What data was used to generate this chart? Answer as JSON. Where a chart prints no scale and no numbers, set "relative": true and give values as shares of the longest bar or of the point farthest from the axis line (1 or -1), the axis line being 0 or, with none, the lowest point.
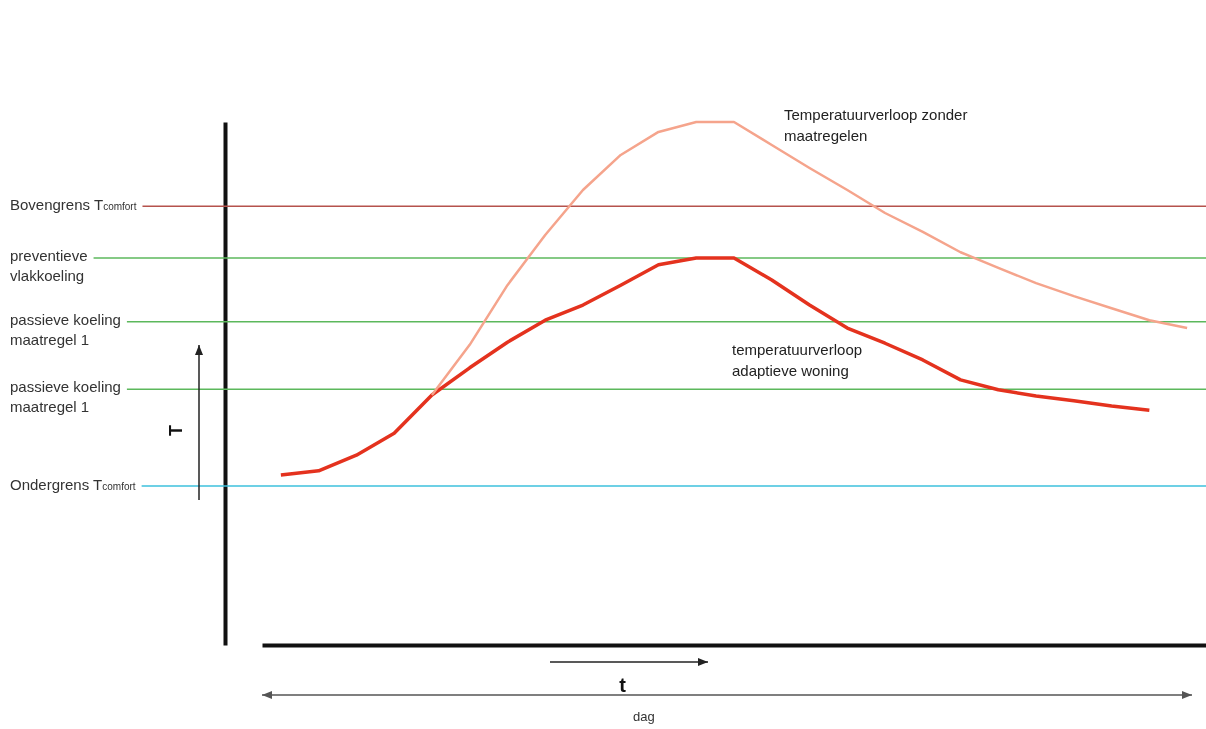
{
  "chart_data": {
    "type": "line",
    "relative": true,
    "xlabel": "t",
    "ylabel": "T",
    "categories": [
      null,
      null,
      null,
      null,
      null,
      null,
      null,
      null,
      null,
      null,
      null,
      null,
      null,
      null,
      null,
      null,
      null,
      null,
      null,
      null,
      null,
      null,
      null,
      null,
      null
    ],
    "series": [
      {
        "name": "temperatuurverloop adaptieve woning",
        "color": "#e4321e",
        "values": [
          0.325,
          0.333,
          0.363,
          0.405,
          0.478,
          0.53,
          0.579,
          0.621,
          0.65,
          0.688,
          0.727,
          0.74,
          0.74,
          0.698,
          0.65,
          0.606,
          0.577,
          0.545,
          0.507,
          0.488,
          0.476,
          0.467,
          0.457,
          0.449,
          null
        ]
      },
      {
        "name": "Temperatuurverloop zonder maatregelen",
        "color": "#f5a48c",
        "values": [
          null,
          null,
          null,
          null,
          0.478,
          0.574,
          0.688,
          0.784,
          0.87,
          0.937,
          0.981,
          1,
          1,
          0.956,
          0.912,
          0.87,
          0.826,
          0.79,
          0.751,
          0.721,
          0.692,
          0.667,
          0.644,
          0.621,
          0.606
        ]
      }
    ],
    "ref_lines": [
      {
        "axis": "y",
        "value": 0.839,
        "label": "Bovengrens T$_{comfort}$",
        "color": "#b5524c"
      },
      {
        "axis": "y",
        "value": 0.74,
        "label": "preventieve\nvlakkoeling",
        "color": "#5cb85c"
      },
      {
        "axis": "y",
        "value": 0.618,
        "label": "passieve koeling\nmaatregel 1",
        "color": "#5cb85c"
      },
      {
        "axis": "y",
        "value": 0.489,
        "label": "passieve koeling\nmaatregel 1",
        "color": "#5cb85c"
      },
      {
        "axis": "y",
        "value": 0.304,
        "label": "Ondergrens T$_{comfort}$",
        "color": "#3cc0dc"
      }
    ],
    "annotations": [
      "dag"
    ]
  }
}
